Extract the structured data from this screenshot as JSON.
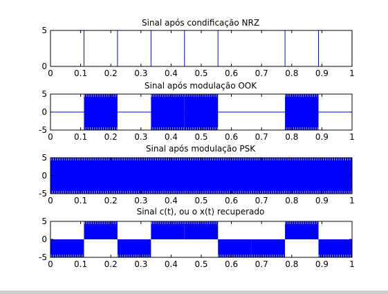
{
  "colors": {
    "signal": "#0000ff",
    "alias": "#cccc66",
    "axes": "#000000",
    "background": "#ffffff"
  },
  "chart_data": [
    {
      "type": "line",
      "title": "Sinal após condificação NRZ",
      "xlim": [
        0,
        1
      ],
      "ylim": [
        0,
        5
      ],
      "xticks": [
        "0",
        "0.1",
        "0.2",
        "0.3",
        "0.4",
        "0.5",
        "0.6",
        "0.7",
        "0.8",
        "0.9",
        "1"
      ],
      "yticks": [
        "0",
        "5"
      ],
      "bits": [
        0,
        1,
        0,
        1,
        0,
        1,
        1,
        0,
        1,
        0
      ],
      "bit_duration": 0.1111,
      "signal": "nrz",
      "grid": false
    },
    {
      "type": "line",
      "title": "Sinal após modulação OOK",
      "xlim": [
        0,
        1
      ],
      "ylim": [
        -5,
        5
      ],
      "xticks": [
        "0",
        "0.1",
        "0.2",
        "0.3",
        "0.4",
        "0.5",
        "0.6",
        "0.7",
        "0.8",
        "0.9",
        "1"
      ],
      "yticks": [
        "-5",
        "0",
        "5"
      ],
      "bits": [
        0,
        1,
        0,
        1,
        1,
        0,
        0,
        1,
        0,
        0
      ],
      "bit_duration": 0.1111,
      "amplitude": 5,
      "signal": "ook",
      "grid": false
    },
    {
      "type": "line",
      "title": "Sinal após modulação PSK",
      "xlim": [
        0,
        1
      ],
      "ylim": [
        -5,
        5
      ],
      "xticks": [
        "0",
        "0.1",
        "0.2",
        "0.3",
        "0.4",
        "0.5",
        "0.6",
        "0.7",
        "0.8",
        "0.9",
        "1"
      ],
      "yticks": [
        "-5",
        "0",
        "5"
      ],
      "amplitude": 5,
      "signal": "psk",
      "grid": false
    },
    {
      "type": "line",
      "title": "Sinal c(t), ou o x(t) recuperado",
      "xlim": [
        0,
        1
      ],
      "ylim": [
        -5,
        5
      ],
      "xticks": [
        "0",
        "0.1",
        "0.2",
        "0.3",
        "0.4",
        "0.5",
        "0.6",
        "0.7",
        "0.8",
        "0.9",
        "1"
      ],
      "yticks": [
        "-5",
        "0",
        "5"
      ],
      "bits": [
        0,
        1,
        0,
        1,
        1,
        0,
        0,
        1,
        0,
        0
      ],
      "bit_duration": 0.1111,
      "high_range": [
        0,
        5
      ],
      "low_range": [
        -5,
        0
      ],
      "signal": "recovered",
      "grid": false
    }
  ]
}
